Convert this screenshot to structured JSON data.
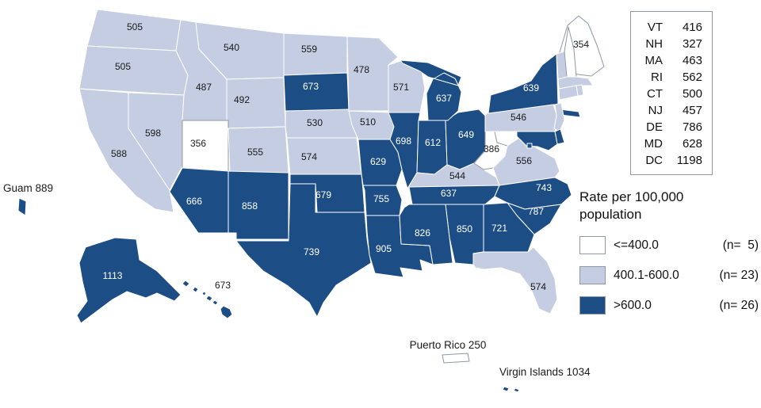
{
  "figure": {
    "background": "#ffffff"
  },
  "colors": {
    "low": "#ffffff",
    "mid": "#c4cde2",
    "high": "#1d4d85",
    "stroke_white": "#ffffff",
    "stroke_gray": "#8f98a3",
    "label_dark": "#1a1a1a",
    "label_light": "#ffffff"
  },
  "legend": {
    "title_line1": "Rate per 100,000",
    "title_line2": "population",
    "classes": [
      {
        "key": "low",
        "label": "<=400.0",
        "count": "(n=  5)",
        "color": "#ffffff"
      },
      {
        "key": "mid",
        "label": "400.1-600.0",
        "count": "(n= 23)",
        "color": "#c4cde2"
      },
      {
        "key": "high",
        "label": ">600.0",
        "count": "(n= 26)",
        "color": "#1d4d85"
      }
    ]
  },
  "northeast_panel": {
    "items": [
      {
        "abbr": "VT",
        "value": "416"
      },
      {
        "abbr": "NH",
        "value": "327"
      },
      {
        "abbr": "MA",
        "value": "463"
      },
      {
        "abbr": "RI",
        "value": "562"
      },
      {
        "abbr": "CT",
        "value": "500"
      },
      {
        "abbr": "NJ",
        "value": "457"
      },
      {
        "abbr": "DE",
        "value": "786"
      },
      {
        "abbr": "MD",
        "value": "628"
      },
      {
        "abbr": "DC",
        "value": "1198"
      }
    ]
  },
  "states": [
    {
      "abbr": "WA",
      "value": "505",
      "class": "mid"
    },
    {
      "abbr": "OR",
      "value": "505",
      "class": "mid"
    },
    {
      "abbr": "CA",
      "value": "588",
      "class": "mid"
    },
    {
      "abbr": "NV",
      "value": "598",
      "class": "mid"
    },
    {
      "abbr": "ID",
      "value": "487",
      "class": "mid"
    },
    {
      "abbr": "MT",
      "value": "540",
      "class": "mid"
    },
    {
      "abbr": "WY",
      "value": "492",
      "class": "mid"
    },
    {
      "abbr": "UT",
      "value": "356",
      "class": "low"
    },
    {
      "abbr": "CO",
      "value": "555",
      "class": "mid"
    },
    {
      "abbr": "AZ",
      "value": "666",
      "class": "high"
    },
    {
      "abbr": "NM",
      "value": "858",
      "class": "high"
    },
    {
      "abbr": "ND",
      "value": "559",
      "class": "mid"
    },
    {
      "abbr": "SD",
      "value": "673",
      "class": "high"
    },
    {
      "abbr": "NE",
      "value": "530",
      "class": "mid"
    },
    {
      "abbr": "KS",
      "value": "574",
      "class": "mid"
    },
    {
      "abbr": "OK",
      "value": "679",
      "class": "high"
    },
    {
      "abbr": "TX",
      "value": "739",
      "class": "high"
    },
    {
      "abbr": "MN",
      "value": "478",
      "class": "mid"
    },
    {
      "abbr": "IA",
      "value": "510",
      "class": "mid"
    },
    {
      "abbr": "MO",
      "value": "629",
      "class": "high"
    },
    {
      "abbr": "AR",
      "value": "755",
      "class": "high"
    },
    {
      "abbr": "LA",
      "value": "905",
      "class": "high"
    },
    {
      "abbr": "WI",
      "value": "571",
      "class": "mid"
    },
    {
      "abbr": "IL",
      "value": "698",
      "class": "high"
    },
    {
      "abbr": "IN",
      "value": "612",
      "class": "high"
    },
    {
      "abbr": "OH",
      "value": "649",
      "class": "high"
    },
    {
      "abbr": "MI",
      "value": "637",
      "class": "high"
    },
    {
      "abbr": "KY",
      "value": "544",
      "class": "mid"
    },
    {
      "abbr": "TN",
      "value": "637",
      "class": "high"
    },
    {
      "abbr": "WV",
      "value": "386",
      "class": "low"
    },
    {
      "abbr": "VA",
      "value": "556",
      "class": "mid"
    },
    {
      "abbr": "NC",
      "value": "743",
      "class": "high"
    },
    {
      "abbr": "SC",
      "value": "787",
      "class": "high"
    },
    {
      "abbr": "GA",
      "value": "721",
      "class": "high"
    },
    {
      "abbr": "AL",
      "value": "850",
      "class": "high"
    },
    {
      "abbr": "MS",
      "value": "826",
      "class": "high"
    },
    {
      "abbr": "FL",
      "value": "574",
      "class": "mid"
    },
    {
      "abbr": "PA",
      "value": "546",
      "class": "mid"
    },
    {
      "abbr": "NY",
      "value": "639",
      "class": "high"
    },
    {
      "abbr": "ME",
      "value": "354",
      "class": "low"
    },
    {
      "abbr": "VT",
      "value": "416",
      "class": "mid"
    },
    {
      "abbr": "NH",
      "value": "327",
      "class": "low"
    },
    {
      "abbr": "MA",
      "value": "463",
      "class": "mid"
    },
    {
      "abbr": "RI",
      "value": "562",
      "class": "mid"
    },
    {
      "abbr": "CT",
      "value": "500",
      "class": "mid"
    },
    {
      "abbr": "NJ",
      "value": "457",
      "class": "mid"
    },
    {
      "abbr": "DE",
      "value": "786",
      "class": "high"
    },
    {
      "abbr": "MD",
      "value": "628",
      "class": "high"
    },
    {
      "abbr": "DC",
      "value": "1198",
      "class": "high"
    },
    {
      "abbr": "AK",
      "value": "1113",
      "class": "high"
    },
    {
      "abbr": "HI",
      "value": "673",
      "class": "high"
    }
  ],
  "territories": [
    {
      "id": "GU",
      "name": "Guam",
      "label": "Guam 889",
      "value": "889",
      "class": "high"
    },
    {
      "id": "PR",
      "name": "Puerto Rico",
      "label": "Puerto Rico 250",
      "value": "250",
      "class": "low"
    },
    {
      "id": "VI",
      "name": "Virgin Islands",
      "label": "Virgin Islands 1034",
      "value": "1034",
      "class": "high"
    }
  ]
}
